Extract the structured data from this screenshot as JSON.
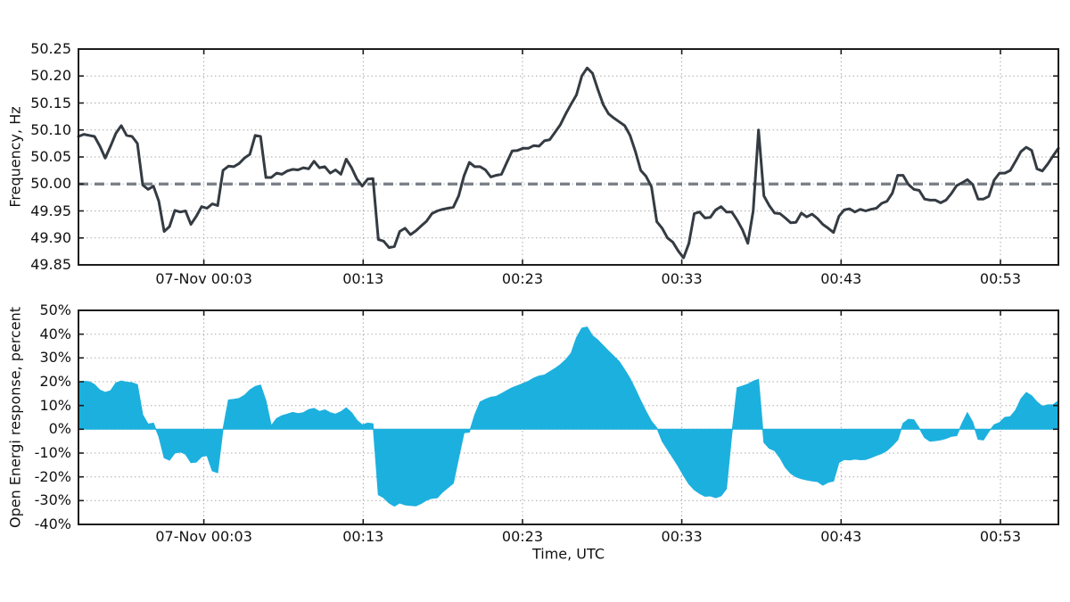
{
  "figure": {
    "background": "#ffffff",
    "text_color": "#111111",
    "grid_color": "#a9a9a9",
    "spine_color": "#1c1c1c"
  },
  "chart_data": [
    {
      "id": "frequency",
      "type": "line",
      "title": "",
      "ylabel": "Frequency, Hz",
      "xlabel": "",
      "ylim": [
        49.85,
        50.25
      ],
      "ytick_values": [
        50.25,
        50.2,
        50.15,
        50.1,
        50.05,
        50.0,
        49.95,
        49.9,
        49.85
      ],
      "ytick_labels": [
        "50.25",
        "50.20",
        "50.15",
        "50.10",
        "50.05",
        "50.00",
        "49.95",
        "49.90",
        "49.85"
      ],
      "xlim_minutes": [
        -4.87,
        56.64
      ],
      "xtick_minutes": [
        3,
        13,
        23,
        33,
        43,
        53
      ],
      "xtick_labels": [
        "07-Nov 00:03",
        "00:13",
        "00:23",
        "00:33",
        "00:43",
        "00:53"
      ],
      "grid": true,
      "legend": "none",
      "line_color": "#343b42",
      "line_width": 3,
      "reference_line": {
        "y": 50.0,
        "color": "#7b8187",
        "style": "dashed",
        "width": 3.4
      },
      "x_start_minute": -4.87,
      "x_step_minute": 0.3361,
      "values": [
        50.088,
        50.092,
        50.09,
        50.088,
        50.07,
        50.048,
        50.07,
        50.094,
        50.108,
        50.09,
        50.088,
        50.075,
        49.998,
        49.99,
        49.996,
        49.968,
        49.912,
        49.921,
        49.951,
        49.948,
        49.95,
        49.925,
        49.94,
        49.958,
        49.955,
        49.963,
        49.96,
        50.025,
        50.033,
        50.032,
        50.038,
        50.048,
        50.055,
        50.09,
        50.088,
        50.012,
        50.012,
        50.02,
        50.018,
        50.024,
        50.027,
        50.026,
        50.03,
        50.028,
        50.042,
        50.03,
        50.032,
        50.02,
        50.026,
        50.018,
        50.046,
        50.03,
        50.009,
        49.996,
        50.009,
        50.01,
        49.897,
        49.894,
        49.882,
        49.884,
        49.912,
        49.918,
        49.906,
        49.913,
        49.922,
        49.931,
        49.945,
        49.95,
        49.953,
        49.955,
        49.957,
        49.978,
        50.015,
        50.04,
        50.032,
        50.032,
        50.026,
        50.013,
        50.016,
        50.018,
        50.04,
        50.061,
        50.062,
        50.066,
        50.066,
        50.071,
        50.07,
        50.08,
        50.082,
        50.096,
        50.11,
        50.13,
        50.148,
        50.165,
        50.2,
        50.215,
        50.205,
        50.175,
        50.147,
        50.13,
        50.122,
        50.115,
        50.108,
        50.09,
        50.06,
        50.025,
        50.014,
        49.995,
        49.93,
        49.918,
        49.9,
        49.892,
        49.876,
        49.863,
        49.89,
        49.945,
        49.948,
        49.937,
        49.938,
        49.952,
        49.958,
        49.948,
        49.948,
        49.933,
        49.915,
        49.89,
        49.95,
        50.1,
        49.978,
        49.96,
        49.946,
        49.945,
        49.937,
        49.928,
        49.929,
        49.946,
        49.939,
        49.944,
        49.936,
        49.925,
        49.918,
        49.91,
        49.94,
        49.952,
        49.954,
        49.948,
        49.953,
        49.95,
        49.953,
        49.955,
        49.964,
        49.968,
        49.983,
        50.016,
        50.016,
        49.999,
        49.99,
        49.988,
        49.972,
        49.97,
        49.97,
        49.965,
        49.97,
        49.982,
        49.997,
        50.002,
        50.008,
        49.999,
        49.972,
        49.972,
        49.977,
        50.007,
        50.02,
        50.02,
        50.025,
        50.042,
        50.06,
        50.068,
        50.062,
        50.028,
        50.024,
        50.037,
        50.052,
        50.066
      ]
    },
    {
      "id": "response",
      "type": "area",
      "title": "",
      "ylabel": "Open Energi response, percent",
      "xlabel": "Time, UTC",
      "ylim": [
        -40,
        50
      ],
      "ytick_values": [
        50,
        40,
        30,
        20,
        10,
        0,
        -10,
        -20,
        -30,
        -40
      ],
      "ytick_labels": [
        "50%",
        "40%",
        "30%",
        "20%",
        "10%",
        "0%",
        "-10%",
        "-20%",
        "-30%",
        "-40%"
      ],
      "xlim_minutes": [
        -4.87,
        56.64
      ],
      "xtick_minutes": [
        3,
        13,
        23,
        33,
        43,
        53
      ],
      "xtick_labels": [
        "07-Nov 00:03",
        "00:13",
        "00:23",
        "00:33",
        "00:43",
        "00:53"
      ],
      "grid": true,
      "legend": "none",
      "fill_color": "#1cb0de",
      "baseline": 0,
      "x_start_minute": -4.87,
      "x_step_minute": 0.3361,
      "values": [
        19.8,
        20.2,
        20.0,
        18.8,
        16.5,
        15.5,
        16.2,
        19.5,
        20.3,
        19.8,
        19.6,
        18.8,
        6.0,
        2.2,
        2.6,
        -3.0,
        -12.0,
        -13.0,
        -10.0,
        -9.5,
        -10.5,
        -14.0,
        -13.8,
        -11.5,
        -11.0,
        -17.5,
        -18.3,
        0.0,
        12.3,
        12.6,
        13.0,
        14.3,
        16.5,
        18.0,
        18.6,
        12.0,
        1.5,
        4.5,
        5.7,
        6.4,
        7.1,
        6.6,
        7.0,
        8.3,
        8.8,
        7.5,
        8.2,
        7.0,
        6.4,
        7.4,
        9.0,
        7.0,
        3.8,
        1.8,
        2.6,
        2.3,
        -27.5,
        -28.8,
        -31.0,
        -32.3,
        -31.0,
        -31.8,
        -32.0,
        -32.2,
        -31.2,
        -29.8,
        -29.0,
        -28.8,
        -26.4,
        -24.5,
        -22.7,
        -12.0,
        -1.5,
        -1.2,
        6.0,
        11.5,
        12.6,
        13.5,
        13.8,
        15.0,
        16.3,
        17.5,
        18.3,
        19.2,
        20.2,
        21.5,
        22.4,
        22.8,
        24.2,
        25.6,
        27.2,
        29.3,
        32.0,
        38.5,
        42.5,
        43.0,
        39.3,
        37.5,
        35.2,
        32.9,
        30.7,
        28.4,
        25.0,
        21.3,
        16.8,
        12.0,
        7.5,
        3.3,
        0.6,
        -5.0,
        -8.5,
        -12.0,
        -15.5,
        -19.5,
        -23.0,
        -25.4,
        -27.0,
        -28.2,
        -28.0,
        -28.8,
        -28.0,
        -25.0,
        -2.0,
        17.5,
        18.2,
        19.0,
        20.2,
        21.0,
        -5.5,
        -8.0,
        -9.0,
        -12.0,
        -16.0,
        -18.5,
        -20.0,
        -20.8,
        -21.3,
        -21.7,
        -22.0,
        -23.5,
        -22.3,
        -21.8,
        -14.0,
        -12.7,
        -12.9,
        -12.5,
        -12.8,
        -12.7,
        -11.9,
        -11.0,
        -10.2,
        -8.9,
        -6.9,
        -4.5,
        2.5,
        4.2,
        4.0,
        0.5,
        -3.5,
        -5.0,
        -4.8,
        -4.5,
        -3.9,
        -3.0,
        -2.7,
        2.5,
        7.0,
        3.0,
        -4.2,
        -4.5,
        -1.0,
        1.9,
        2.8,
        5.0,
        5.3,
        8.0,
        12.8,
        15.5,
        14.1,
        11.5,
        9.7,
        10.3,
        10.3,
        12.0
      ]
    }
  ]
}
